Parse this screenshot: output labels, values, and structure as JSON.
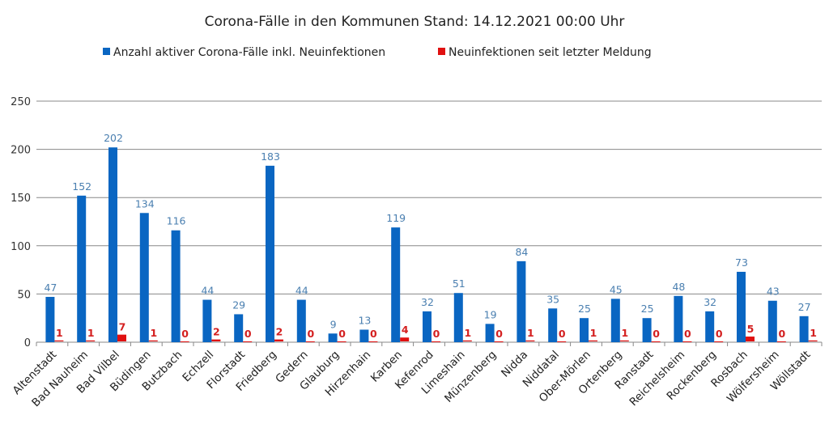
{
  "chart_data": {
    "type": "bar",
    "title": "Corona-Fälle in den Kommunen Stand: 14.12.2021 00:00 Uhr",
    "categories": [
      "Altenstadt",
      "Bad Nauheim",
      "Bad Vilbel",
      "Büdingen",
      "Butzbach",
      "Echzell",
      "Florstadt",
      "Friedberg",
      "Gedern",
      "Glauburg",
      "Hirzenhain",
      "Karben",
      "Kefenrod",
      "Limeshain",
      "Münzenberg",
      "Nidda",
      "Niddatal",
      "Ober-Mörlen",
      "Ortenberg",
      "Ranstadt",
      "Reichelsheim",
      "Rockenberg",
      "Rosbach",
      "Wölfersheim",
      "Wöllstadt"
    ],
    "series": [
      {
        "name": "Anzahl aktiver Corona-Fälle inkl. Neuinfektionen",
        "color": "#0a66c2",
        "values": [
          47,
          152,
          202,
          134,
          116,
          44,
          29,
          183,
          44,
          9,
          13,
          119,
          32,
          51,
          19,
          84,
          35,
          25,
          45,
          25,
          48,
          32,
          73,
          43,
          27
        ]
      },
      {
        "name": "Neuinfektionen seit letzter Meldung",
        "color": "#e01010",
        "values": [
          1,
          1,
          7,
          1,
          0,
          2,
          0,
          2,
          0,
          0,
          0,
          4,
          0,
          1,
          0,
          1,
          0,
          1,
          1,
          0,
          0,
          0,
          5,
          0,
          1
        ]
      }
    ],
    "ylim": [
      0,
      250
    ],
    "yticks": [
      0,
      50,
      100,
      150,
      200,
      250
    ],
    "grid": true,
    "legend": "top"
  }
}
